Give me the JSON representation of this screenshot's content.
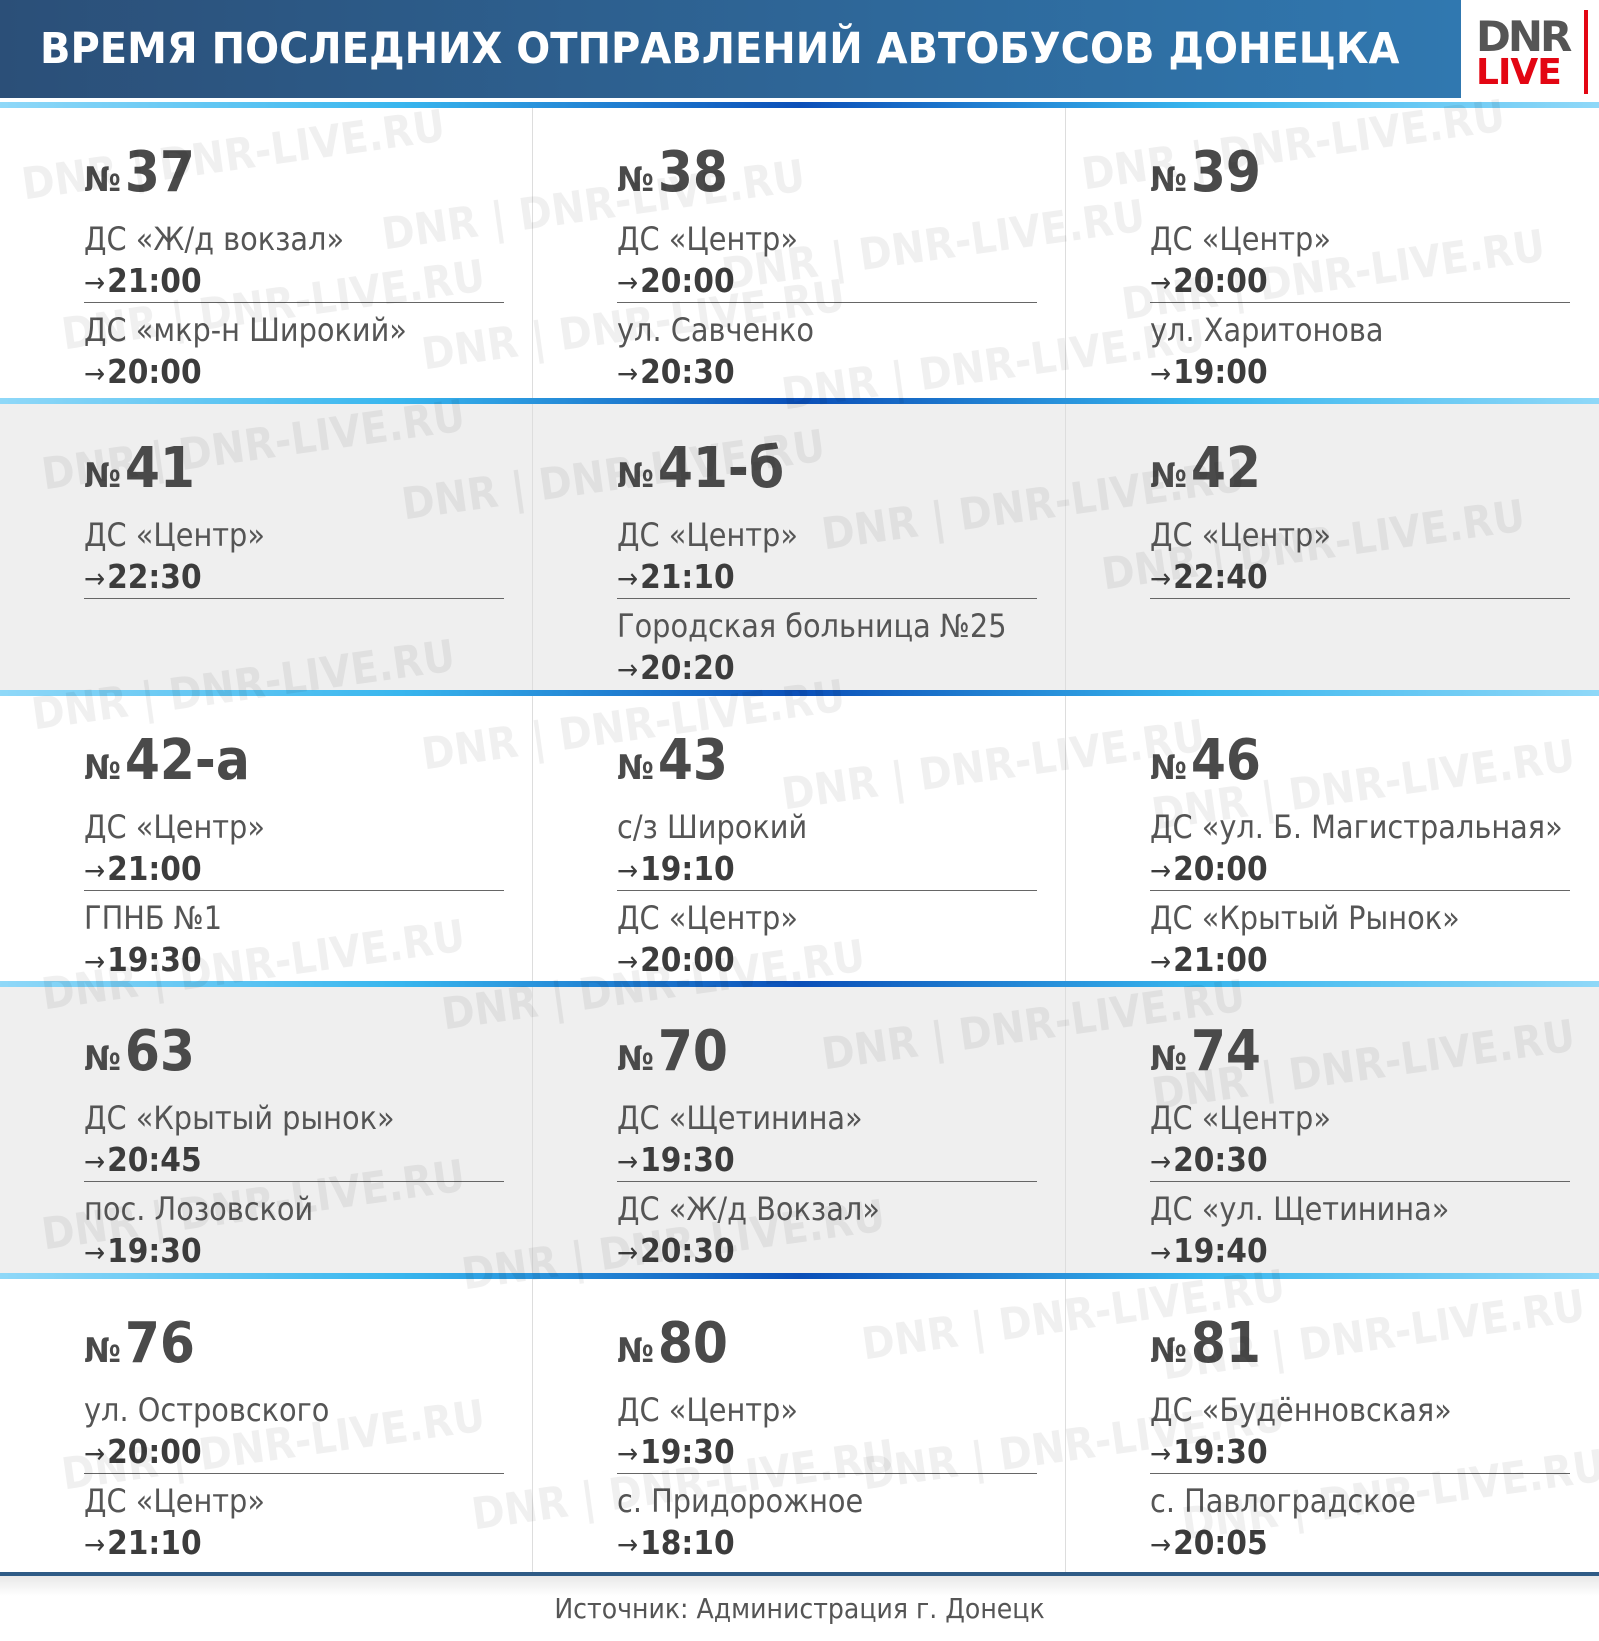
{
  "header": {
    "title": "ВРЕМЯ ПОСЛЕДНИХ ОТПРАВЛЕНИЙ АВТОБУСОВ ДОНЕЦКА",
    "logo": {
      "top": "DNR",
      "bottom": "LIVE"
    }
  },
  "colors": {
    "header_start": "#2b4f78",
    "header_end": "#3078b0",
    "logo_red": "#e30613",
    "row_alt": "#efefef"
  },
  "watermark": "DNR | DNR-LIVE.RU",
  "number_sign": "№",
  "arrow": "→",
  "routes": [
    {
      "number": "37",
      "stops": [
        {
          "name": "ДС «Ж/д вокзал»",
          "time": "21:00"
        },
        {
          "name": "ДС «мкр-н Широкий»",
          "time": "20:00"
        }
      ]
    },
    {
      "number": "38",
      "stops": [
        {
          "name": "ДС «Центр»",
          "time": "20:00"
        },
        {
          "name": "ул. Савченко",
          "time": "20:30"
        }
      ]
    },
    {
      "number": "39",
      "stops": [
        {
          "name": "ДС «Центр»",
          "time": "20:00"
        },
        {
          "name": "ул. Харитонова",
          "time": "19:00"
        }
      ]
    },
    {
      "number": "41",
      "stops": [
        {
          "name": "ДС «Центр»",
          "time": "22:30"
        }
      ]
    },
    {
      "number": "41-б",
      "stops": [
        {
          "name": "ДС «Центр»",
          "time": "21:10"
        },
        {
          "name": "Городская больница №25",
          "time": "20:20"
        }
      ]
    },
    {
      "number": "42",
      "stops": [
        {
          "name": "ДС «Центр»",
          "time": "22:40"
        }
      ]
    },
    {
      "number": "42-а",
      "stops": [
        {
          "name": "ДС «Центр»",
          "time": "21:00"
        },
        {
          "name": "ГПНБ №1",
          "time": "19:30"
        }
      ]
    },
    {
      "number": "43",
      "stops": [
        {
          "name": "с/з Широкий",
          "time": "19:10"
        },
        {
          "name": "ДС «Центр»",
          "time": "20:00"
        }
      ]
    },
    {
      "number": "46",
      "stops": [
        {
          "name": "ДС «ул. Б. Магистральная»",
          "time": "20:00"
        },
        {
          "name": "ДС «Крытый Рынок»",
          "time": "21:00"
        }
      ]
    },
    {
      "number": "63",
      "stops": [
        {
          "name": "ДС «Крытый рынок»",
          "time": "20:45"
        },
        {
          "name": "пос. Лозовской",
          "time": "19:30"
        }
      ]
    },
    {
      "number": "70",
      "stops": [
        {
          "name": "ДС «Щетинина»",
          "time": "19:30"
        },
        {
          "name": "ДС «Ж/д Вокзал»",
          "time": "20:30"
        }
      ]
    },
    {
      "number": "74",
      "stops": [
        {
          "name": "ДС «Центр»",
          "time": "20:30"
        },
        {
          "name": "ДС «ул. Щетинина»",
          "time": "19:40"
        }
      ]
    },
    {
      "number": "76",
      "stops": [
        {
          "name": "ул. Островского",
          "time": "20:00"
        },
        {
          "name": "ДС «Центр»",
          "time": "21:10"
        }
      ]
    },
    {
      "number": "80",
      "stops": [
        {
          "name": "ДС «Центр»",
          "time": "19:30"
        },
        {
          "name": "с. Придорожное",
          "time": "18:10"
        }
      ]
    },
    {
      "number": "81",
      "stops": [
        {
          "name": "ДС «Будённовская»",
          "time": "19:30"
        },
        {
          "name": "с. Павлоградское",
          "time": "20:05"
        }
      ]
    }
  ],
  "footer": {
    "source": "Источник: Администрация г. Донецк"
  }
}
